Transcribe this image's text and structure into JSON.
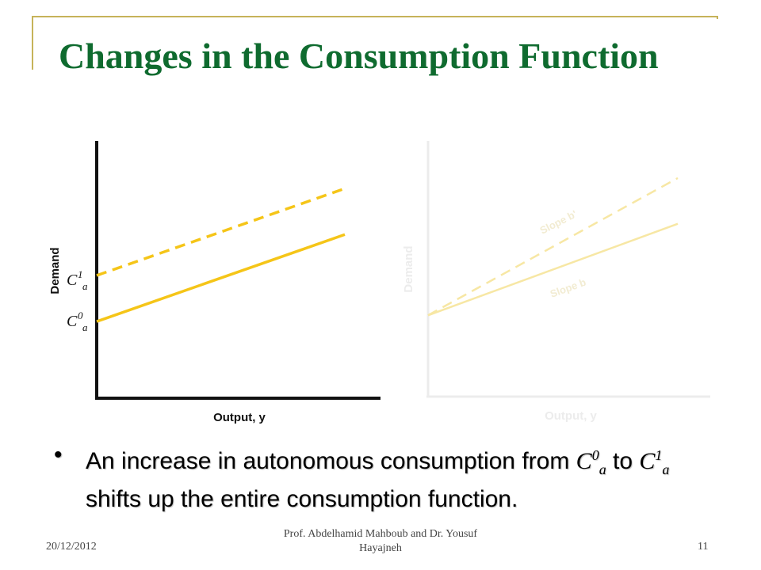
{
  "slide": {
    "title": "Changes in the Consumption Function",
    "bullet_parts": {
      "pre": "An increase in autonomous consumption from ",
      "c": "C",
      "zero": "0",
      "a": "a",
      "to": " to ",
      "one": "1",
      "post": " shifts up the entire consumption function."
    },
    "footer": {
      "date": "20/12/2012",
      "author": "Prof. Abdelhamid Mahboub and Dr. Yousuf Hayajneh",
      "page": "11"
    }
  },
  "chart_data": [
    {
      "type": "line",
      "xlabel": "Output, y",
      "ylabel": "Demand",
      "y_tick_labels": [
        "C1a",
        "C0a"
      ],
      "series": [
        {
          "style": "dashed",
          "color": "#f5c518",
          "intercept": "C1a",
          "x": [
            0,
            1
          ],
          "y": [
            0.48,
            0.82
          ]
        },
        {
          "style": "solid",
          "color": "#f5c518",
          "intercept": "C0a",
          "x": [
            0,
            1
          ],
          "y": [
            0.3,
            0.64
          ]
        }
      ],
      "grid": false,
      "legend": "none"
    },
    {
      "type": "line",
      "faded": true,
      "xlabel": "Output, y",
      "ylabel": "Demand",
      "annotations": [
        "Slope b'",
        "Slope b"
      ],
      "series": [
        {
          "style": "dashed",
          "color": "#f7e7a4",
          "x": [
            0,
            1
          ],
          "y": [
            0.32,
            0.86
          ]
        },
        {
          "style": "solid",
          "color": "#f7e7a4",
          "x": [
            0,
            1
          ],
          "y": [
            0.32,
            0.68
          ]
        }
      ],
      "grid": false,
      "legend": "none"
    }
  ]
}
